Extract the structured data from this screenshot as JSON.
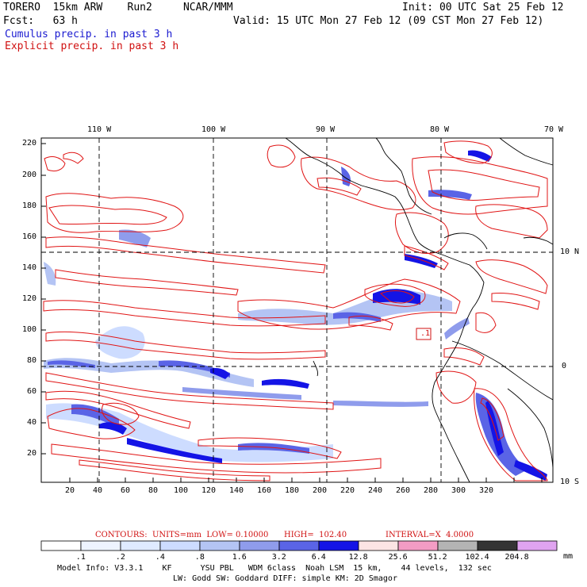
{
  "header": {
    "model": "TORERO  15km ARW    Run2     NCAR/MMM",
    "init": "Init: 00 UTC Sat 25 Feb 12",
    "fcst": "Fcst:   63 h",
    "valid": "Valid: 15 UTC Mon 27 Feb 12 (09 CST Mon 27 Feb 12)",
    "field1": "Cumulus precip. in past 3 h",
    "field2": "Explicit precip. in past 3 h"
  },
  "map": {
    "lon_labels": [
      "110 W",
      "100 W",
      "90 W",
      "80 W",
      "70 W"
    ],
    "lat_labels": [
      "10 N",
      "0",
      "10 S"
    ],
    "left_ticks": [
      "220",
      "200",
      "180",
      "160",
      "140",
      "120",
      "100",
      "80",
      "60",
      "40",
      "20"
    ],
    "bottom_ticks": [
      "20",
      "40",
      "60",
      "80",
      "100",
      "120",
      "140",
      "160",
      "180",
      "200",
      "220",
      "240",
      "260",
      "280",
      "300",
      "320"
    ],
    "annotation": ".1"
  },
  "contours": {
    "units": "CONTOURS:  UNITS=mm  LOW= 0.10000",
    "high": "HIGH=  102.40",
    "interval": "INTERVAL=X  4.0000"
  },
  "legend": {
    "labels": [
      ".1",
      ".2",
      ".4",
      ".8",
      "1.6",
      "3.2",
      "6.4",
      "12.8",
      "25.6",
      "51.2",
      "102.4",
      "204.8"
    ],
    "unit": "mm",
    "colors": [
      "#ffffff",
      "#eef4ff",
      "#dfeaff",
      "#cddcff",
      "#b4c4f4",
      "#8f9cec",
      "#5a64e6",
      "#1414e6",
      "#fce4e4",
      "#f39cc4",
      "#b4b4b4",
      "#343434",
      "#e0a4f0"
    ]
  },
  "footer": {
    "line1": "Model Info: V3.3.1    KF      YSU PBL   WDM 6class  Noah LSM  15 km,    44 levels,  132 sec",
    "line2": "LW: Godd SW: Goddard DIFF: simple KM: 2D Smagor"
  }
}
